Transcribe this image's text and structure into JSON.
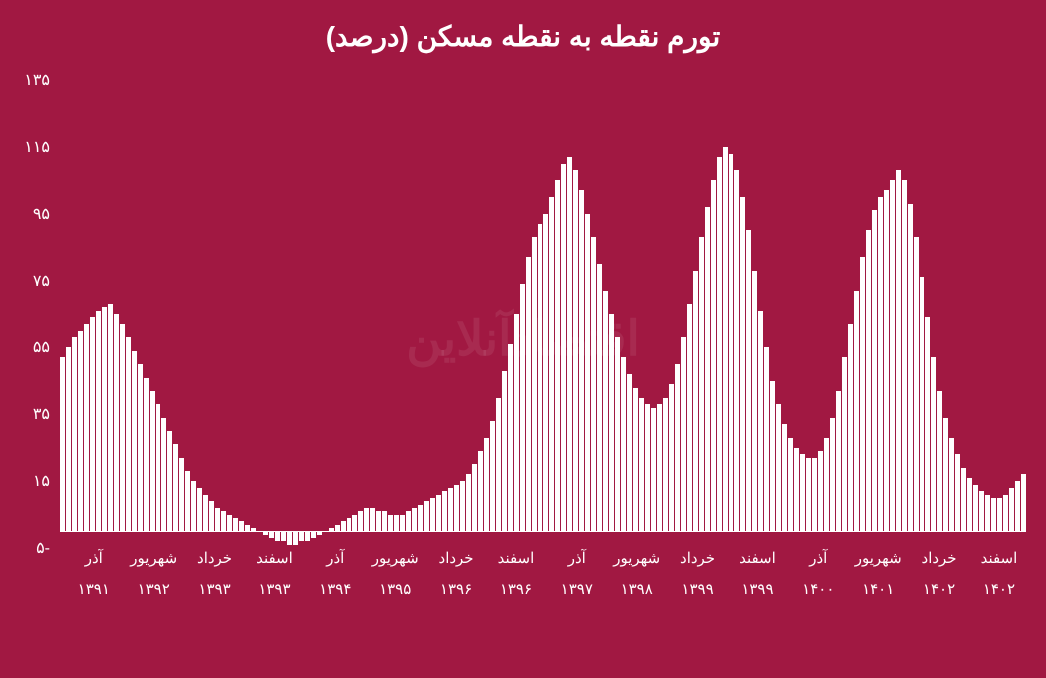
{
  "chart": {
    "type": "bar",
    "title": "تورم نقطه به نقطه مسکن (درصد)",
    "title_fontsize": 28,
    "title_color": "#ffffff",
    "background_color": "#a11842",
    "bar_color": "#ffffff",
    "axis_label_color": "#ffffff",
    "axis_label_fontsize": 16,
    "ylim": [
      -5,
      135
    ],
    "yticks": [
      -5,
      15,
      35,
      55,
      75,
      95,
      115,
      135
    ],
    "ytick_labels": [
      "-۵",
      "۱۵",
      "۳۵",
      "۵۵",
      "۷۵",
      "۹۵",
      "۱۱۵",
      "۱۳۵"
    ],
    "xticks": [
      {
        "month": "آذر",
        "year": "۱۳۹۱",
        "pos": 0.035
      },
      {
        "month": "شهریور",
        "year": "۱۳۹۲",
        "pos": 0.097
      },
      {
        "month": "خرداد",
        "year": "۱۳۹۳",
        "pos": 0.16
      },
      {
        "month": "اسفند",
        "year": "۱۳۹۳",
        "pos": 0.222
      },
      {
        "month": "آذر",
        "year": "۱۳۹۴",
        "pos": 0.285
      },
      {
        "month": "شهریور",
        "year": "۱۳۹۵",
        "pos": 0.347
      },
      {
        "month": "خرداد",
        "year": "۱۳۹۶",
        "pos": 0.41
      },
      {
        "month": "اسفند",
        "year": "۱۳۹۶",
        "pos": 0.472
      },
      {
        "month": "آذر",
        "year": "۱۳۹۷",
        "pos": 0.535
      },
      {
        "month": "شهریور",
        "year": "۱۳۹۸",
        "pos": 0.597
      },
      {
        "month": "خرداد",
        "year": "۱۳۹۹",
        "pos": 0.66
      },
      {
        "month": "اسفند",
        "year": "۱۳۹۹",
        "pos": 0.722
      },
      {
        "month": "آذر",
        "year": "۱۴۰۰",
        "pos": 0.785
      },
      {
        "month": "شهریور",
        "year": "۱۴۰۱",
        "pos": 0.847
      },
      {
        "month": "خرداد",
        "year": "۱۴۰۲",
        "pos": 0.91
      },
      {
        "month": "اسفند",
        "year": "۱۴۰۲",
        "pos": 0.972
      }
    ],
    "values": [
      52,
      55,
      58,
      60,
      62,
      64,
      66,
      67,
      68,
      65,
      62,
      58,
      54,
      50,
      46,
      42,
      38,
      34,
      30,
      26,
      22,
      18,
      15,
      13,
      11,
      9,
      7,
      6,
      5,
      4,
      3,
      2,
      1,
      0,
      -1,
      -2,
      -3,
      -3,
      -4,
      -4,
      -3,
      -3,
      -2,
      -1,
      0,
      1,
      2,
      3,
      4,
      5,
      6,
      7,
      7,
      6,
      6,
      5,
      5,
      5,
      6,
      7,
      8,
      9,
      10,
      11,
      12,
      13,
      14,
      15,
      17,
      20,
      24,
      28,
      33,
      40,
      48,
      56,
      65,
      74,
      82,
      88,
      92,
      95,
      100,
      105,
      110,
      112,
      108,
      102,
      95,
      88,
      80,
      72,
      65,
      58,
      52,
      47,
      43,
      40,
      38,
      37,
      38,
      40,
      44,
      50,
      58,
      68,
      78,
      88,
      97,
      105,
      112,
      115,
      113,
      108,
      100,
      90,
      78,
      66,
      55,
      45,
      38,
      32,
      28,
      25,
      23,
      22,
      22,
      24,
      28,
      34,
      42,
      52,
      62,
      72,
      82,
      90,
      96,
      100,
      102,
      105,
      108,
      105,
      98,
      88,
      76,
      64,
      52,
      42,
      34,
      28,
      23,
      19,
      16,
      14,
      12,
      11,
      10,
      10,
      11,
      13,
      15,
      17
    ],
    "watermark": "اقتصادآنلاین"
  }
}
